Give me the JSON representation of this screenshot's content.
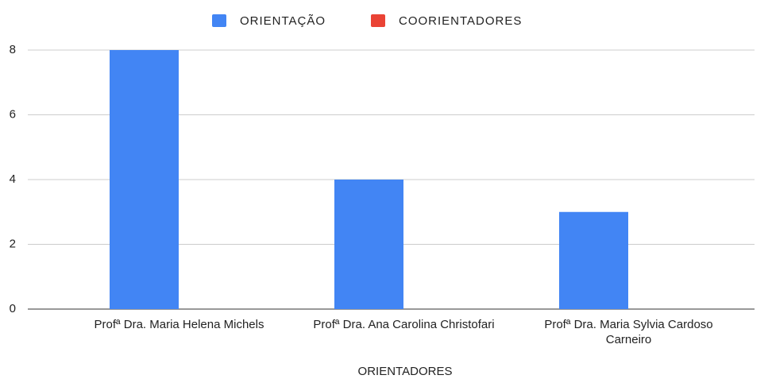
{
  "chart_data": {
    "type": "bar",
    "x_label": "ORIENTADORES",
    "categories": [
      "Profª Dra. Maria Helena Michels",
      "Profª Dra. Ana Carolina Christofari",
      "Profª Dra. Maria Sylvia Cardoso Carneiro"
    ],
    "series": [
      {
        "name": "ORIENTAÇÃO",
        "color": "#4285f4",
        "values": [
          8,
          4,
          3
        ]
      },
      {
        "name": "COORIENTADORES",
        "color": "#ea4335",
        "values": [
          0,
          0,
          0
        ]
      }
    ],
    "ylim": [
      0,
      8
    ],
    "yticks": [
      0,
      2,
      4,
      6,
      8
    ],
    "grid": true,
    "legend": "top"
  }
}
